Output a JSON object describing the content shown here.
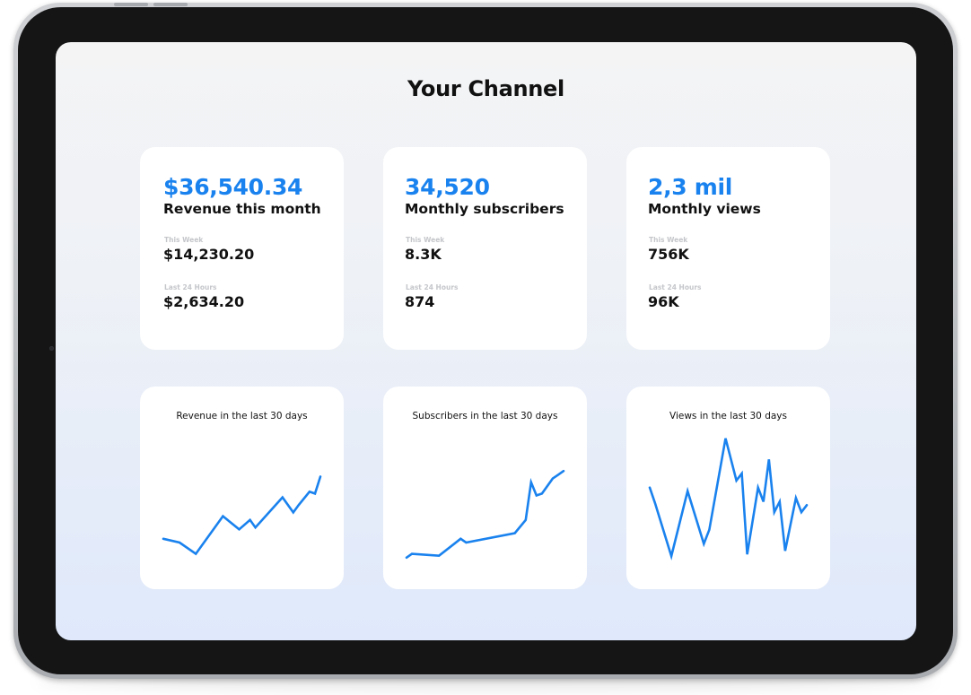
{
  "page": {
    "title": "Your Channel"
  },
  "stats": [
    {
      "main_value": "$36,540.34",
      "caption": "Revenue this month",
      "week_label": "This Week",
      "week_value": "$14,230.20",
      "day_label": "Last 24 Hours",
      "day_value": "$2,634.20"
    },
    {
      "main_value": "34,520",
      "caption": "Monthly subscribers",
      "week_label": "This Week",
      "week_value": "8.3K",
      "day_label": "Last 24 Hours",
      "day_value": "874"
    },
    {
      "main_value": "2,3 mil",
      "caption": "Monthly views",
      "week_label": "This Week",
      "week_value": "756K",
      "day_label": "Last 24 Hours",
      "day_value": "96K"
    }
  ],
  "charts": [
    {
      "title": "Revenue in the last 30 days",
      "type": "line",
      "x": [
        1,
        4,
        7,
        12,
        15,
        17,
        18,
        23,
        25,
        26,
        28,
        29,
        30
      ],
      "y": [
        12,
        10,
        4,
        24,
        17,
        22,
        18,
        34,
        26,
        30,
        37,
        36,
        45
      ],
      "ylim": [
        0,
        70
      ]
    },
    {
      "title": "Subscribers in the last 30 days",
      "type": "line",
      "x": [
        1,
        2,
        7,
        11,
        12,
        21,
        23,
        24,
        25,
        26,
        28,
        29,
        30
      ],
      "y": [
        2,
        4,
        3,
        12,
        10,
        15,
        22,
        42,
        35,
        36,
        44,
        46,
        48
      ],
      "ylim": [
        0,
        70
      ]
    },
    {
      "title": "Views in the last 30 days",
      "type": "line",
      "x": [
        1,
        2,
        5,
        8,
        11,
        12,
        15,
        17,
        18,
        19,
        21,
        22,
        23,
        24,
        25,
        26,
        28,
        29,
        30
      ],
      "y": [
        42,
        33,
        3,
        40,
        10,
        18,
        70,
        46,
        50,
        4,
        42,
        34,
        58,
        28,
        34,
        6,
        36,
        28,
        32
      ],
      "ylim": [
        0,
        75
      ]
    }
  ],
  "colors": {
    "accent": "#1a82ee",
    "text": "#111111",
    "muted": "#c4c6ca",
    "card": "#ffffff"
  }
}
